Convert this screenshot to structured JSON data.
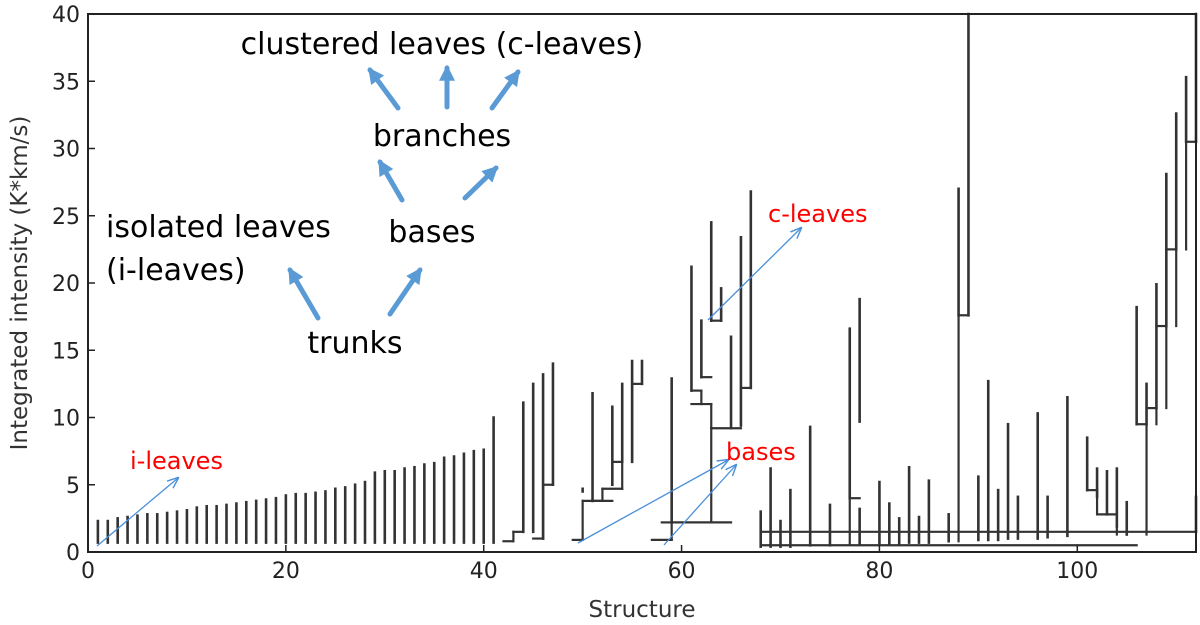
{
  "chart_data": {
    "type": "dendrogram",
    "xlabel": "Structure",
    "ylabel": "Integrated intensity (K*km/s)",
    "xlim": [
      0,
      112
    ],
    "ylim": [
      0,
      40
    ],
    "x_ticks": [
      0,
      20,
      40,
      60,
      80,
      100
    ],
    "y_ticks": [
      0,
      5,
      10,
      15,
      20,
      25,
      30,
      35,
      40
    ],
    "line_color": "#333333",
    "isolated_leaves": [
      [
        1,
        0.7,
        2.3
      ],
      [
        2,
        0.7,
        2.3
      ],
      [
        3,
        0.7,
        2.5
      ],
      [
        4,
        0.7,
        2.6
      ],
      [
        5,
        0.7,
        2.7
      ],
      [
        6,
        0.7,
        2.8
      ],
      [
        7,
        0.7,
        2.8
      ],
      [
        8,
        0.7,
        2.9
      ],
      [
        9,
        0.7,
        3.0
      ],
      [
        10,
        0.7,
        3.1
      ],
      [
        11,
        0.7,
        3.3
      ],
      [
        12,
        0.7,
        3.4
      ],
      [
        13,
        0.7,
        3.4
      ],
      [
        14,
        0.7,
        3.5
      ],
      [
        15,
        0.7,
        3.6
      ],
      [
        16,
        0.7,
        3.7
      ],
      [
        17,
        0.7,
        3.8
      ],
      [
        18,
        0.7,
        3.9
      ],
      [
        19,
        0.7,
        4.0
      ],
      [
        20,
        0.7,
        4.2
      ],
      [
        21,
        0.7,
        4.3
      ],
      [
        22,
        0.7,
        4.3
      ],
      [
        23,
        0.7,
        4.4
      ],
      [
        24,
        0.7,
        4.5
      ],
      [
        25,
        0.7,
        4.7
      ],
      [
        26,
        0.7,
        4.8
      ],
      [
        27,
        0.7,
        5.0
      ],
      [
        28,
        0.7,
        5.2
      ],
      [
        29,
        0.7,
        5.9
      ],
      [
        30,
        0.7,
        6.0
      ],
      [
        31,
        0.7,
        6.0
      ],
      [
        32,
        0.7,
        6.2
      ],
      [
        33,
        0.7,
        6.3
      ],
      [
        34,
        0.7,
        6.5
      ],
      [
        35,
        0.7,
        6.6
      ],
      [
        36,
        0.7,
        7.0
      ],
      [
        37,
        0.7,
        7.1
      ],
      [
        38,
        0.7,
        7.3
      ],
      [
        39,
        0.7,
        7.5
      ],
      [
        40,
        0.7,
        7.6
      ],
      [
        41,
        0.7,
        10.0
      ],
      [
        68,
        0.4,
        3.0
      ],
      [
        69,
        0.4,
        6.2
      ],
      [
        70,
        0.4,
        2.3
      ],
      [
        71,
        0.4,
        4.6
      ],
      [
        73,
        0.5,
        9.3
      ],
      [
        75,
        0.5,
        3.5
      ],
      [
        78,
        0.6,
        3.2
      ],
      [
        80,
        0.6,
        5.2
      ],
      [
        81,
        0.6,
        3.6
      ],
      [
        82,
        0.6,
        2.5
      ],
      [
        83,
        0.7,
        6.3
      ],
      [
        84,
        0.7,
        2.6
      ],
      [
        85,
        0.7,
        5.3
      ],
      [
        87,
        0.8,
        2.8
      ],
      [
        90,
        0.9,
        5.6
      ],
      [
        91,
        0.9,
        12.7
      ],
      [
        92,
        0.9,
        4.6
      ],
      [
        93,
        1.0,
        9.5
      ],
      [
        94,
        1.0,
        4.1
      ],
      [
        96,
        1.0,
        10.3
      ],
      [
        97,
        1.1,
        4.1
      ],
      [
        99,
        1.2,
        11.5
      ],
      [
        105,
        1.3,
        3.7
      ],
      [
        112,
        1.5,
        4.1
      ]
    ],
    "clustered_leaves": [
      [
        44,
        1.5,
        11.1
      ],
      [
        45,
        1.5,
        12.5
      ],
      [
        46,
        1.0,
        13.2
      ],
      [
        47,
        5.0,
        14.0
      ],
      [
        50,
        4.5,
        4.7
      ],
      [
        51,
        3.8,
        11.8
      ],
      [
        53,
        5.0,
        10.8
      ],
      [
        54,
        6.7,
        12.5
      ],
      [
        55,
        6.7,
        14.2
      ],
      [
        56,
        12.5,
        14.2
      ],
      [
        59,
        2.2,
        12.9
      ],
      [
        61,
        12.0,
        21.2
      ],
      [
        62,
        13.0,
        17.2
      ],
      [
        63,
        17.2,
        24.5
      ],
      [
        64,
        17.2,
        19.6
      ],
      [
        65,
        9.2,
        16.0
      ],
      [
        66,
        9.4,
        23.4
      ],
      [
        67,
        12.2,
        26.8
      ],
      [
        77,
        4.0,
        16.6
      ],
      [
        78,
        9.7,
        18.8
      ],
      [
        88,
        17.6,
        27.0
      ],
      [
        89,
        17.6,
        40.0
      ],
      [
        101,
        4.6,
        8.5
      ],
      [
        102,
        4.1,
        6.2
      ],
      [
        103,
        2.8,
        6.0
      ],
      [
        104,
        1.9,
        6.2
      ],
      [
        106,
        9.5,
        18.2
      ],
      [
        107,
        9.5,
        12.5
      ],
      [
        108,
        10.7,
        19.9
      ],
      [
        109,
        16.8,
        28.1
      ],
      [
        110,
        22.5,
        32.6
      ],
      [
        111,
        30.5,
        35.3
      ],
      [
        112,
        30.5,
        40.0
      ]
    ],
    "annotations": {
      "clustered_leaves": "clustered leaves (c-leaves)",
      "branches": "branches",
      "isolated_leaves_1": "isolated leaves",
      "isolated_leaves_2": "(i-leaves)",
      "bases": "bases",
      "trunks": "trunks",
      "i_leaves_red": "i-leaves",
      "c_leaves_red": "c-leaves",
      "bases_red": "bases"
    },
    "annotation_colors": {
      "black_text": "#000000",
      "red_text": "#ff0000",
      "thick_arrow": "#5b9bd5",
      "thin_arrow": "#4a90d9"
    }
  }
}
